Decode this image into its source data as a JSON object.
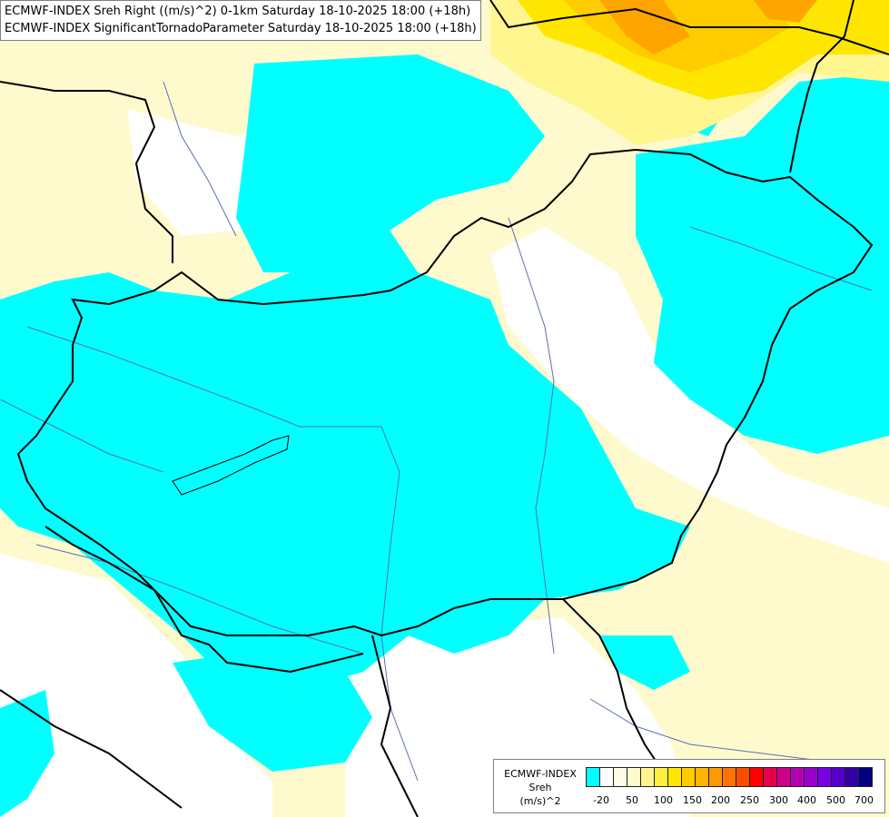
{
  "header": {
    "line1": "ECMWF-INDEX Sreh Right ((m/s)^2) 0-1km Saturday 18-10-2025 18:00 (+18h)",
    "line2": "ECMWF-INDEX SignificantTornadoParameter Saturday 18-10-2025 18:00 (+18h)"
  },
  "map": {
    "fill_colors": {
      "cyan": "#00ffff",
      "pale": "#fffacd",
      "light_yellow": "#fff68f",
      "yellow": "#ffe600",
      "orange_light": "#ffcc00",
      "orange": "#ffa500",
      "white": "#ffffff"
    },
    "border_color": "#000000",
    "river_color": "#5a6fb2"
  },
  "legend": {
    "title": "ECMWF-INDEX",
    "param": "Sreh",
    "unit": "(m/s)^2",
    "colors": [
      "#00ffff",
      "#ffffff",
      "#fffde6",
      "#fffacd",
      "#fff68f",
      "#ffef40",
      "#ffe600",
      "#ffcc00",
      "#ffb400",
      "#ff9900",
      "#ff7300",
      "#ff4d00",
      "#ff0000",
      "#e6004c",
      "#cc0088",
      "#b300b3",
      "#9900cc",
      "#7a00e6",
      "#5500cc",
      "#3300a6",
      "#000080"
    ],
    "ticks": [
      "-20",
      "50",
      "100",
      "150",
      "200",
      "250",
      "300",
      "400",
      "500",
      "700"
    ]
  }
}
